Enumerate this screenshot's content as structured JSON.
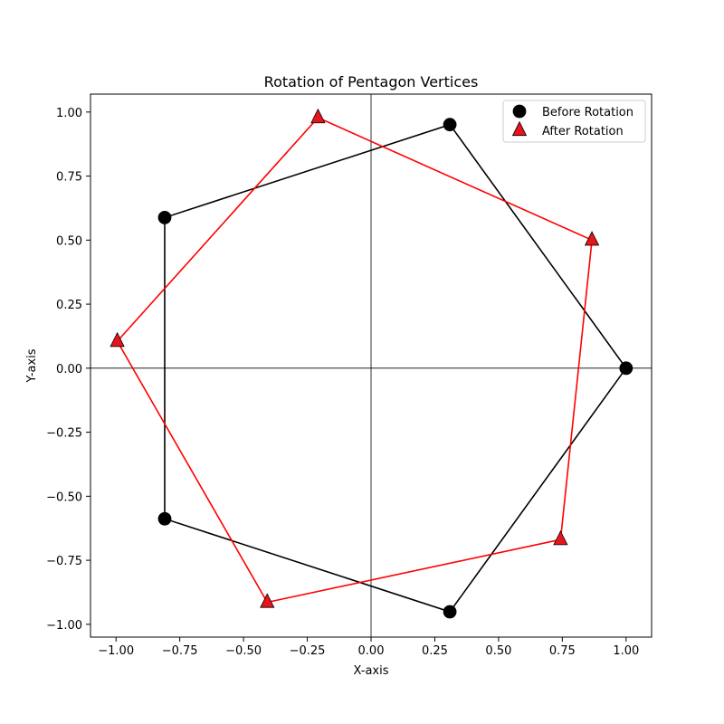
{
  "chart_data": {
    "type": "scatter",
    "title": "Rotation of Pentagon Vertices",
    "xlabel": "X-axis",
    "ylabel": "Y-axis",
    "xlim": [
      -1.1,
      1.1
    ],
    "ylim": [
      -1.05,
      1.07
    ],
    "xticks": [
      -1.0,
      -0.75,
      -0.5,
      -0.25,
      0.0,
      0.25,
      0.5,
      0.75,
      1.0
    ],
    "xtick_labels": [
      "−1.00",
      "−0.75",
      "−0.50",
      "−0.25",
      "0.00",
      "0.25",
      "0.50",
      "0.75",
      "1.00"
    ],
    "yticks": [
      1.0,
      0.75,
      0.5,
      0.25,
      0.0,
      -0.25,
      -0.5,
      -0.75,
      -1.0
    ],
    "ytick_labels": [
      "1.00",
      "0.75",
      "0.50",
      "0.25",
      "0.00",
      "−0.25",
      "−0.50",
      "−0.75",
      "−1.00"
    ],
    "grid": false,
    "reference_lines": [
      "x=0",
      "y=0"
    ],
    "legend_position": "top-right",
    "series": [
      {
        "name": "Before Rotation",
        "marker": "circle",
        "color": "#000000",
        "line_color": "#000000",
        "closed_polygon": true,
        "x": [
          1.0,
          0.309,
          -0.809,
          -0.809,
          0.309
        ],
        "y": [
          0.0,
          0.951,
          0.588,
          -0.588,
          -0.951
        ]
      },
      {
        "name": "After Rotation",
        "marker": "triangle",
        "color": "#e8141b",
        "line_color": "#ff0000",
        "closed_polygon": true,
        "x": [
          0.866,
          -0.208,
          -0.995,
          -0.407,
          0.743
        ],
        "y": [
          0.5,
          0.978,
          0.105,
          -0.914,
          -0.669
        ]
      }
    ]
  }
}
